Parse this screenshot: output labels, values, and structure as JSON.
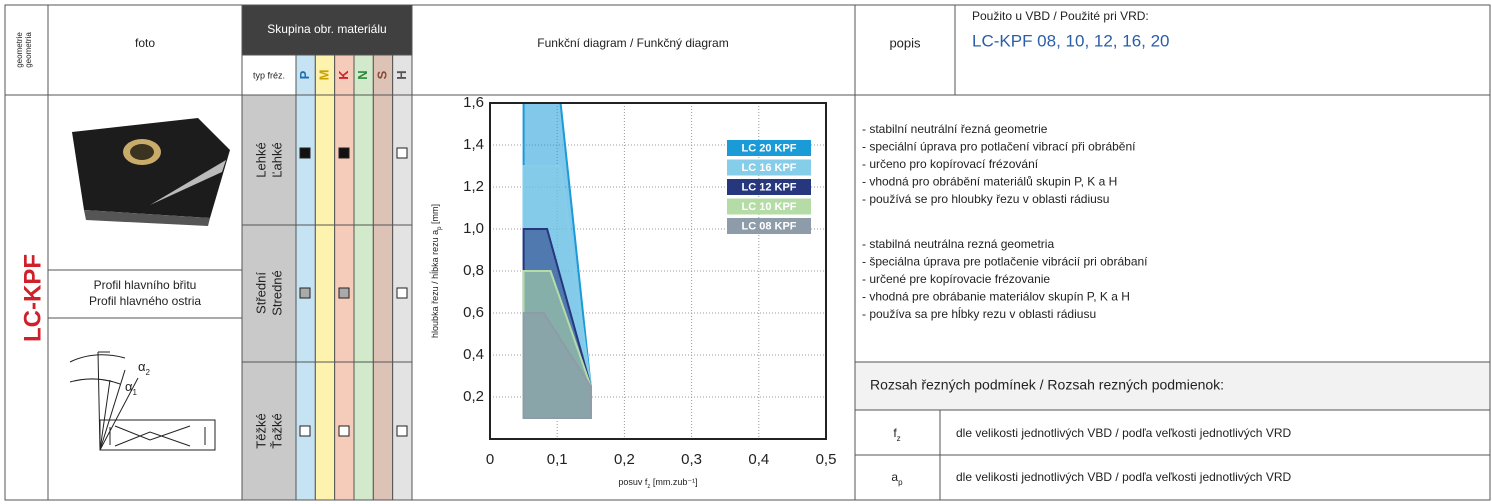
{
  "header": {
    "geometry": [
      "geometrie",
      "geometria"
    ],
    "photo": "foto",
    "material_group": "Skupina obr. materiálu",
    "milling_type": "typ fréz.",
    "materials": [
      "P",
      "M",
      "K",
      "N",
      "S",
      "H"
    ],
    "diagram": "Funkční diagram / Funkčný diagram",
    "description": "popis",
    "used_for": "Použito u VBD / Použité pri VRD:",
    "inserts": "LC-KPF 08, 10, 12, 16, 20"
  },
  "geometry_name": "LC-KPF",
  "profile": [
    "Profil hlavního břitu",
    "Profil hlavného ostria"
  ],
  "angles": [
    [
      "α",
      "2"
    ],
    [
      "α",
      "1"
    ]
  ],
  "rows": [
    [
      "Lehké",
      "Ľahké"
    ],
    [
      "Střední",
      "Stredné"
    ],
    [
      "Těžké",
      "Ťažké"
    ]
  ],
  "description_cz": [
    "- stabilní neutrální řezná geometrie",
    "- speciální úprava pro potlačení vibrací při obrábění",
    "- určeno pro kopírovací frézování",
    "- vhodná pro obrábění materiálů skupin P, K a H",
    "- používá se pro hloubky řezu v oblasti rádiusu"
  ],
  "description_sk": [
    "- stabilná neutrálna rezná geometria",
    "- špeciálna úprava pre potlačenie vibrácií pri obrábaní",
    "- určené pre kopírovacie frézovanie",
    "- vhodná pre obrábanie materiálov skupín P, K a H",
    "- používa sa pre hĺbky rezu v oblasti rádiusu"
  ],
  "conditions": {
    "title": "Rozsah řezných podmínek / Rozsah rezných podmienok:",
    "rows": [
      {
        "symbol": [
          "f",
          "z"
        ],
        "text": "dle velikosti jednotlivých VBD / podľa veľkosti jednotlivých VRD"
      },
      {
        "symbol": [
          "a",
          "p"
        ],
        "text": "dle velikosti jednotlivých VBD / podľa veľkosti jednotlivých VRD"
      }
    ]
  },
  "chart_data": {
    "type": "area",
    "xlabel": [
      "posuv f",
      "z",
      " [mm.zub⁻¹]"
    ],
    "ylabel": [
      "hloubka řezu / hĺbka rezu a",
      "p",
      " [mm]"
    ],
    "xlim": [
      0,
      0.5
    ],
    "ylim": [
      0,
      1.6
    ],
    "xticks": [
      0,
      {
        "value": 0.1,
        "label": "0,1"
      },
      {
        "value": 0.2,
        "label": "0,2"
      },
      {
        "value": 0.3,
        "label": "0,3"
      },
      {
        "value": 0.4,
        "label": "0,4"
      },
      {
        "value": 0.5,
        "label": "0,5"
      }
    ],
    "yticks": [
      {
        "value": 0.2,
        "label": "0,2"
      },
      {
        "value": 0.4,
        "label": "0,4"
      },
      {
        "value": 0.6,
        "label": "0,6"
      },
      {
        "value": 0.8,
        "label": "0,8"
      },
      {
        "value": 1.0,
        "label": "1,0"
      },
      {
        "value": 1.2,
        "label": "1,2"
      },
      {
        "value": 1.4,
        "label": "1,4"
      },
      {
        "value": 1.6,
        "label": "1,6"
      }
    ],
    "grid": true,
    "series": [
      {
        "name": "LC 20 KPF",
        "color": "#1b9ad8",
        "x": [
          0.05,
          0.05,
          0.105,
          0.15,
          0.15
        ],
        "values": [
          0.1,
          1.6,
          1.6,
          0.25,
          0.1
        ]
      },
      {
        "name": "LC 16 KPF",
        "color": "#86cde9",
        "x": [
          0.05,
          0.05,
          0.105,
          0.15,
          0.15
        ],
        "values": [
          0.1,
          1.3,
          1.3,
          0.25,
          0.1
        ]
      },
      {
        "name": "LC 12 KPF",
        "color": "#27377e",
        "x": [
          0.05,
          0.05,
          0.085,
          0.15,
          0.15
        ],
        "values": [
          0.1,
          1.0,
          1.0,
          0.25,
          0.1
        ]
      },
      {
        "name": "LC 10 KPF",
        "color": "#b5dca6",
        "x": [
          0.05,
          0.05,
          0.09,
          0.15,
          0.15
        ],
        "values": [
          0.1,
          0.8,
          0.8,
          0.25,
          0.1
        ]
      },
      {
        "name": "LC 08 KPF",
        "color": "#8d9ca8",
        "x": [
          0.05,
          0.05,
          0.08,
          0.15,
          0.15
        ],
        "values": [
          0.1,
          0.6,
          0.6,
          0.25,
          0.1
        ]
      }
    ]
  }
}
